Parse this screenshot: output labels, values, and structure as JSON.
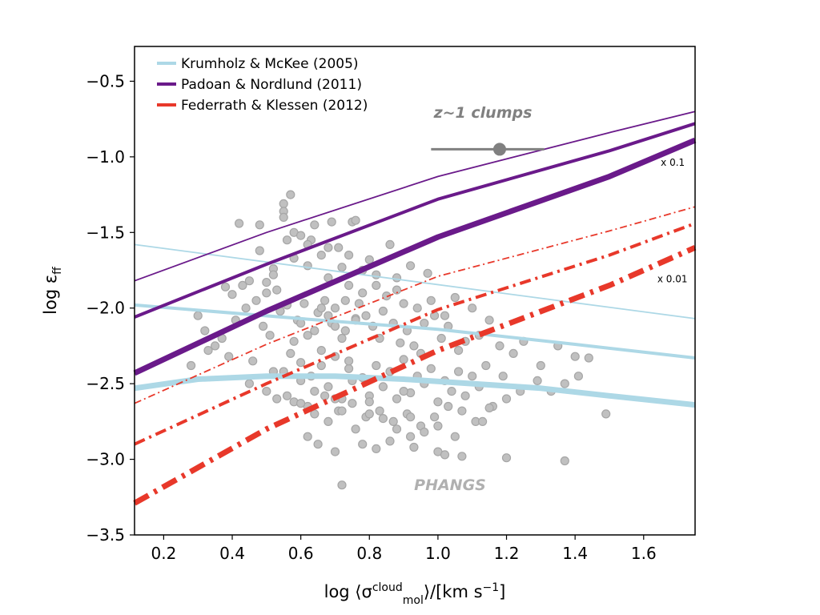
{
  "chart_data": {
    "type": "line",
    "xlabel": {
      "pre": "log ⟨σ",
      "sup": "cloud",
      "sub": "mol",
      "post": "⟩/[km s",
      "post_sup": "−1",
      "end": "]"
    },
    "ylabel": {
      "main": "log ε",
      "sub": "ff"
    },
    "xlim": [
      0.115,
      1.75
    ],
    "ylim": [
      -3.5,
      -0.27
    ],
    "xticks": [
      {
        "value": 0.2,
        "label": "0.2"
      },
      {
        "value": 0.4,
        "label": "0.4"
      },
      {
        "value": 0.6,
        "label": "0.6"
      },
      {
        "value": 0.8,
        "label": "0.8"
      },
      {
        "value": 1.0,
        "label": "1.0"
      },
      {
        "value": 1.2,
        "label": "1.2"
      },
      {
        "value": 1.4,
        "label": "1.4"
      },
      {
        "value": 1.6,
        "label": "1.6"
      }
    ],
    "yticks": [
      {
        "value": -0.5,
        "label": "−0.5"
      },
      {
        "value": -1.0,
        "label": "−1.0"
      },
      {
        "value": -1.5,
        "label": "−1.5"
      },
      {
        "value": -2.0,
        "label": "−2.0"
      },
      {
        "value": -2.5,
        "label": "−2.5"
      },
      {
        "value": -3.0,
        "label": "−3.0"
      },
      {
        "value": -3.5,
        "label": "−3.5"
      }
    ],
    "grid": false,
    "legend_position": "top-left",
    "legend": [
      {
        "label": "Krumholz & McKee (2005)",
        "color": "#add8e6",
        "style": "solid"
      },
      {
        "label": "Padoan & Nordlund (2011)",
        "color": "#6a1a8a",
        "style": "solid"
      },
      {
        "label": "Federrath & Klessen (2012)",
        "color": "#e8382a",
        "style": "dashdot"
      }
    ],
    "series": [
      {
        "model": "Krumholz & McKee (2005)",
        "variant": "thin",
        "color": "#add8e6",
        "style": "solid",
        "x": [
          0.115,
          1.75
        ],
        "y": [
          -1.58,
          -2.07
        ]
      },
      {
        "model": "Krumholz & McKee (2005)",
        "variant": "medium",
        "color": "#add8e6",
        "style": "solid",
        "x": [
          0.115,
          0.6,
          1.0,
          1.4,
          1.75
        ],
        "y": [
          -1.98,
          -2.07,
          -2.14,
          -2.24,
          -2.33
        ]
      },
      {
        "model": "Krumholz & McKee (2005)",
        "variant": "thick",
        "color": "#add8e6",
        "style": "solid",
        "x": [
          0.115,
          0.3,
          0.5,
          0.7,
          0.9,
          1.1,
          1.3,
          1.5,
          1.75
        ],
        "y": [
          -2.53,
          -2.47,
          -2.45,
          -2.45,
          -2.47,
          -2.5,
          -2.53,
          -2.58,
          -2.64
        ]
      },
      {
        "model": "Padoan & Nordlund (2011)",
        "variant": "thin",
        "color": "#6a1a8a",
        "style": "solid",
        "x": [
          0.115,
          0.5,
          1.0,
          1.5,
          1.75
        ],
        "y": [
          -1.82,
          -1.5,
          -1.13,
          -0.84,
          -0.7
        ]
      },
      {
        "model": "Padoan & Nordlund (2011)",
        "variant": "medium",
        "color": "#6a1a8a",
        "style": "solid",
        "x": [
          0.115,
          0.5,
          1.0,
          1.5,
          1.75
        ],
        "y": [
          -2.06,
          -1.71,
          -1.28,
          -0.96,
          -0.78
        ]
      },
      {
        "model": "Padoan & Nordlund (2011)",
        "variant": "thick",
        "color": "#6a1a8a",
        "style": "solid",
        "x": [
          0.115,
          0.5,
          1.0,
          1.5,
          1.75
        ],
        "y": [
          -2.43,
          -2.02,
          -1.53,
          -1.13,
          -0.89
        ]
      },
      {
        "model": "Federrath & Klessen (2012)",
        "variant": "thin",
        "color": "#e8382a",
        "style": "dashdot",
        "x": [
          0.115,
          0.5,
          1.0,
          1.5,
          1.75
        ],
        "y": [
          -2.63,
          -2.24,
          -1.79,
          -1.49,
          -1.33
        ]
      },
      {
        "model": "Federrath & Klessen (2012)",
        "variant": "medium",
        "color": "#e8382a",
        "style": "dashdot",
        "x": [
          0.115,
          0.5,
          1.0,
          1.5,
          1.75
        ],
        "y": [
          -2.9,
          -2.5,
          -2.01,
          -1.65,
          -1.44
        ]
      },
      {
        "model": "Federrath & Klessen (2012)",
        "variant": "thick",
        "color": "#e8382a",
        "style": "dashdot",
        "x": [
          0.115,
          0.5,
          1.0,
          1.5,
          1.75
        ],
        "y": [
          -3.29,
          -2.8,
          -2.28,
          -1.85,
          -1.6
        ]
      }
    ],
    "clumps": {
      "label": "z~1 clumps",
      "x": 1.18,
      "y": -0.95,
      "x_range": [
        0.98,
        1.31
      ],
      "color": "#808080"
    },
    "phangs": {
      "label": "PHANGS",
      "color": "#c0c0c0",
      "x": [
        0.42,
        0.48,
        0.55,
        0.57,
        0.64,
        0.69,
        0.75,
        0.76,
        0.55,
        0.55,
        0.58,
        0.6,
        0.45,
        0.5,
        0.63,
        0.71,
        0.8,
        0.86,
        0.92,
        0.97,
        0.38,
        0.4,
        0.43,
        0.47,
        0.5,
        0.52,
        0.53,
        0.58,
        0.62,
        0.66,
        0.68,
        0.72,
        0.74,
        0.78,
        0.82,
        0.85,
        0.88,
        0.9,
        0.94,
        0.98,
        1.02,
        1.05,
        1.1,
        1.15,
        0.3,
        0.32,
        0.35,
        0.37,
        0.41,
        0.44,
        0.49,
        0.51,
        0.54,
        0.56,
        0.59,
        0.61,
        0.65,
        0.67,
        0.69,
        0.7,
        0.73,
        0.76,
        0.77,
        0.79,
        0.81,
        0.83,
        0.84,
        0.87,
        0.89,
        0.91,
        0.93,
        0.95,
        0.96,
        0.99,
        1.01,
        1.03,
        1.06,
        1.08,
        1.12,
        1.18,
        1.22,
        1.25,
        1.3,
        1.35,
        1.4,
        1.44,
        0.28,
        0.33,
        0.39,
        0.46,
        0.52,
        0.57,
        0.6,
        0.63,
        0.66,
        0.7,
        0.74,
        0.78,
        0.82,
        0.86,
        0.9,
        0.94,
        0.98,
        1.02,
        1.06,
        1.1,
        1.14,
        1.19,
        1.24,
        1.29,
        1.33,
        1.37,
        1.41,
        1.49,
        0.45,
        0.5,
        0.55,
        0.6,
        0.64,
        0.68,
        0.72,
        0.75,
        0.8,
        0.84,
        0.88,
        0.92,
        0.96,
        1.0,
        1.04,
        1.08,
        1.12,
        1.16,
        1.2,
        0.53,
        0.58,
        0.62,
        0.67,
        0.71,
        0.75,
        0.79,
        0.83,
        0.87,
        0.91,
        0.95,
        0.99,
        1.03,
        1.07,
        1.11,
        1.15,
        0.56,
        0.6,
        0.64,
        0.68,
        0.72,
        0.76,
        0.8,
        0.84,
        0.88,
        0.92,
        0.96,
        1.0,
        1.05,
        1.13,
        0.65,
        0.7,
        0.78,
        0.86,
        0.93,
        1.0,
        1.07,
        1.2,
        1.37,
        0.62,
        0.72,
        0.82,
        0.92,
        1.02,
        0.7,
        0.8,
        0.9,
        0.74,
        0.66,
        0.58,
        0.62,
        0.7,
        0.76,
        0.68,
        0.64,
        0.72,
        0.6,
        0.66,
        0.73,
        0.78,
        0.82,
        0.88,
        0.52,
        0.48,
        0.56,
        0.62,
        0.68,
        0.74
      ],
      "y": [
        -1.44,
        -1.45,
        -1.31,
        -1.25,
        -1.45,
        -1.43,
        -1.43,
        -1.42,
        -1.36,
        -1.4,
        -1.5,
        -1.52,
        -1.82,
        -1.83,
        -1.55,
        -1.6,
        -1.68,
        -1.58,
        -1.72,
        -1.77,
        -1.86,
        -1.91,
        -1.85,
        -1.95,
        -1.9,
        -1.74,
        -1.88,
        -1.67,
        -1.72,
        -1.65,
        -1.8,
        -1.73,
        -1.85,
        -1.75,
        -1.78,
        -1.92,
        -1.88,
        -1.97,
        -2.0,
        -1.95,
        -2.05,
        -1.93,
        -2.0,
        -2.08,
        -2.05,
        -2.15,
        -2.25,
        -2.2,
        -2.08,
        -2.0,
        -2.12,
        -2.18,
        -2.02,
        -1.98,
        -2.08,
        -1.97,
        -2.03,
        -1.95,
        -2.1,
        -2.0,
        -2.15,
        -2.07,
        -1.97,
        -2.05,
        -2.12,
        -2.2,
        -2.02,
        -2.1,
        -2.23,
        -2.15,
        -2.25,
        -2.3,
        -2.1,
        -2.05,
        -2.2,
        -2.12,
        -2.28,
        -2.22,
        -2.18,
        -2.25,
        -2.3,
        -2.22,
        -2.38,
        -2.25,
        -2.32,
        -2.33,
        -2.38,
        -2.28,
        -2.32,
        -2.35,
        -2.42,
        -2.3,
        -2.36,
        -2.45,
        -2.38,
        -2.32,
        -2.4,
        -2.46,
        -2.38,
        -2.42,
        -2.34,
        -2.45,
        -2.4,
        -2.48,
        -2.42,
        -2.45,
        -2.38,
        -2.45,
        -2.55,
        -2.48,
        -2.55,
        -2.5,
        -2.45,
        -2.7,
        -2.5,
        -2.55,
        -2.42,
        -2.48,
        -2.55,
        -2.52,
        -2.6,
        -2.48,
        -2.58,
        -2.52,
        -2.6,
        -2.56,
        -2.5,
        -2.62,
        -2.55,
        -2.58,
        -2.52,
        -2.65,
        -2.6,
        -2.6,
        -2.62,
        -2.65,
        -2.58,
        -2.68,
        -2.63,
        -2.72,
        -2.68,
        -2.75,
        -2.7,
        -2.78,
        -2.72,
        -2.65,
        -2.68,
        -2.75,
        -2.66,
        -2.58,
        -2.63,
        -2.7,
        -2.75,
        -2.68,
        -2.8,
        -2.7,
        -2.73,
        -2.8,
        -2.72,
        -2.82,
        -2.78,
        -2.85,
        -2.75,
        -2.9,
        -2.95,
        -2.9,
        -2.88,
        -2.92,
        -2.95,
        -2.98,
        -2.99,
        -3.01,
        -2.85,
        -3.17,
        -2.93,
        -2.85,
        -2.97,
        -2.6,
        -2.62,
        -2.55,
        -2.35,
        -2.28,
        -2.22,
        -2.18,
        -2.12,
        -2.08,
        -2.05,
        -2.15,
        -2.2,
        -2.1,
        -2.0,
        -1.95,
        -1.9,
        -1.85,
        -1.8,
        -1.78,
        -1.62,
        -1.55,
        -1.58,
        -1.6,
        -1.65
      ]
    },
    "annotations": [
      {
        "text": "x 0.1",
        "x": 1.65,
        "y": -1.06
      },
      {
        "text": "x 0.01",
        "x": 1.64,
        "y": -1.83
      }
    ]
  }
}
